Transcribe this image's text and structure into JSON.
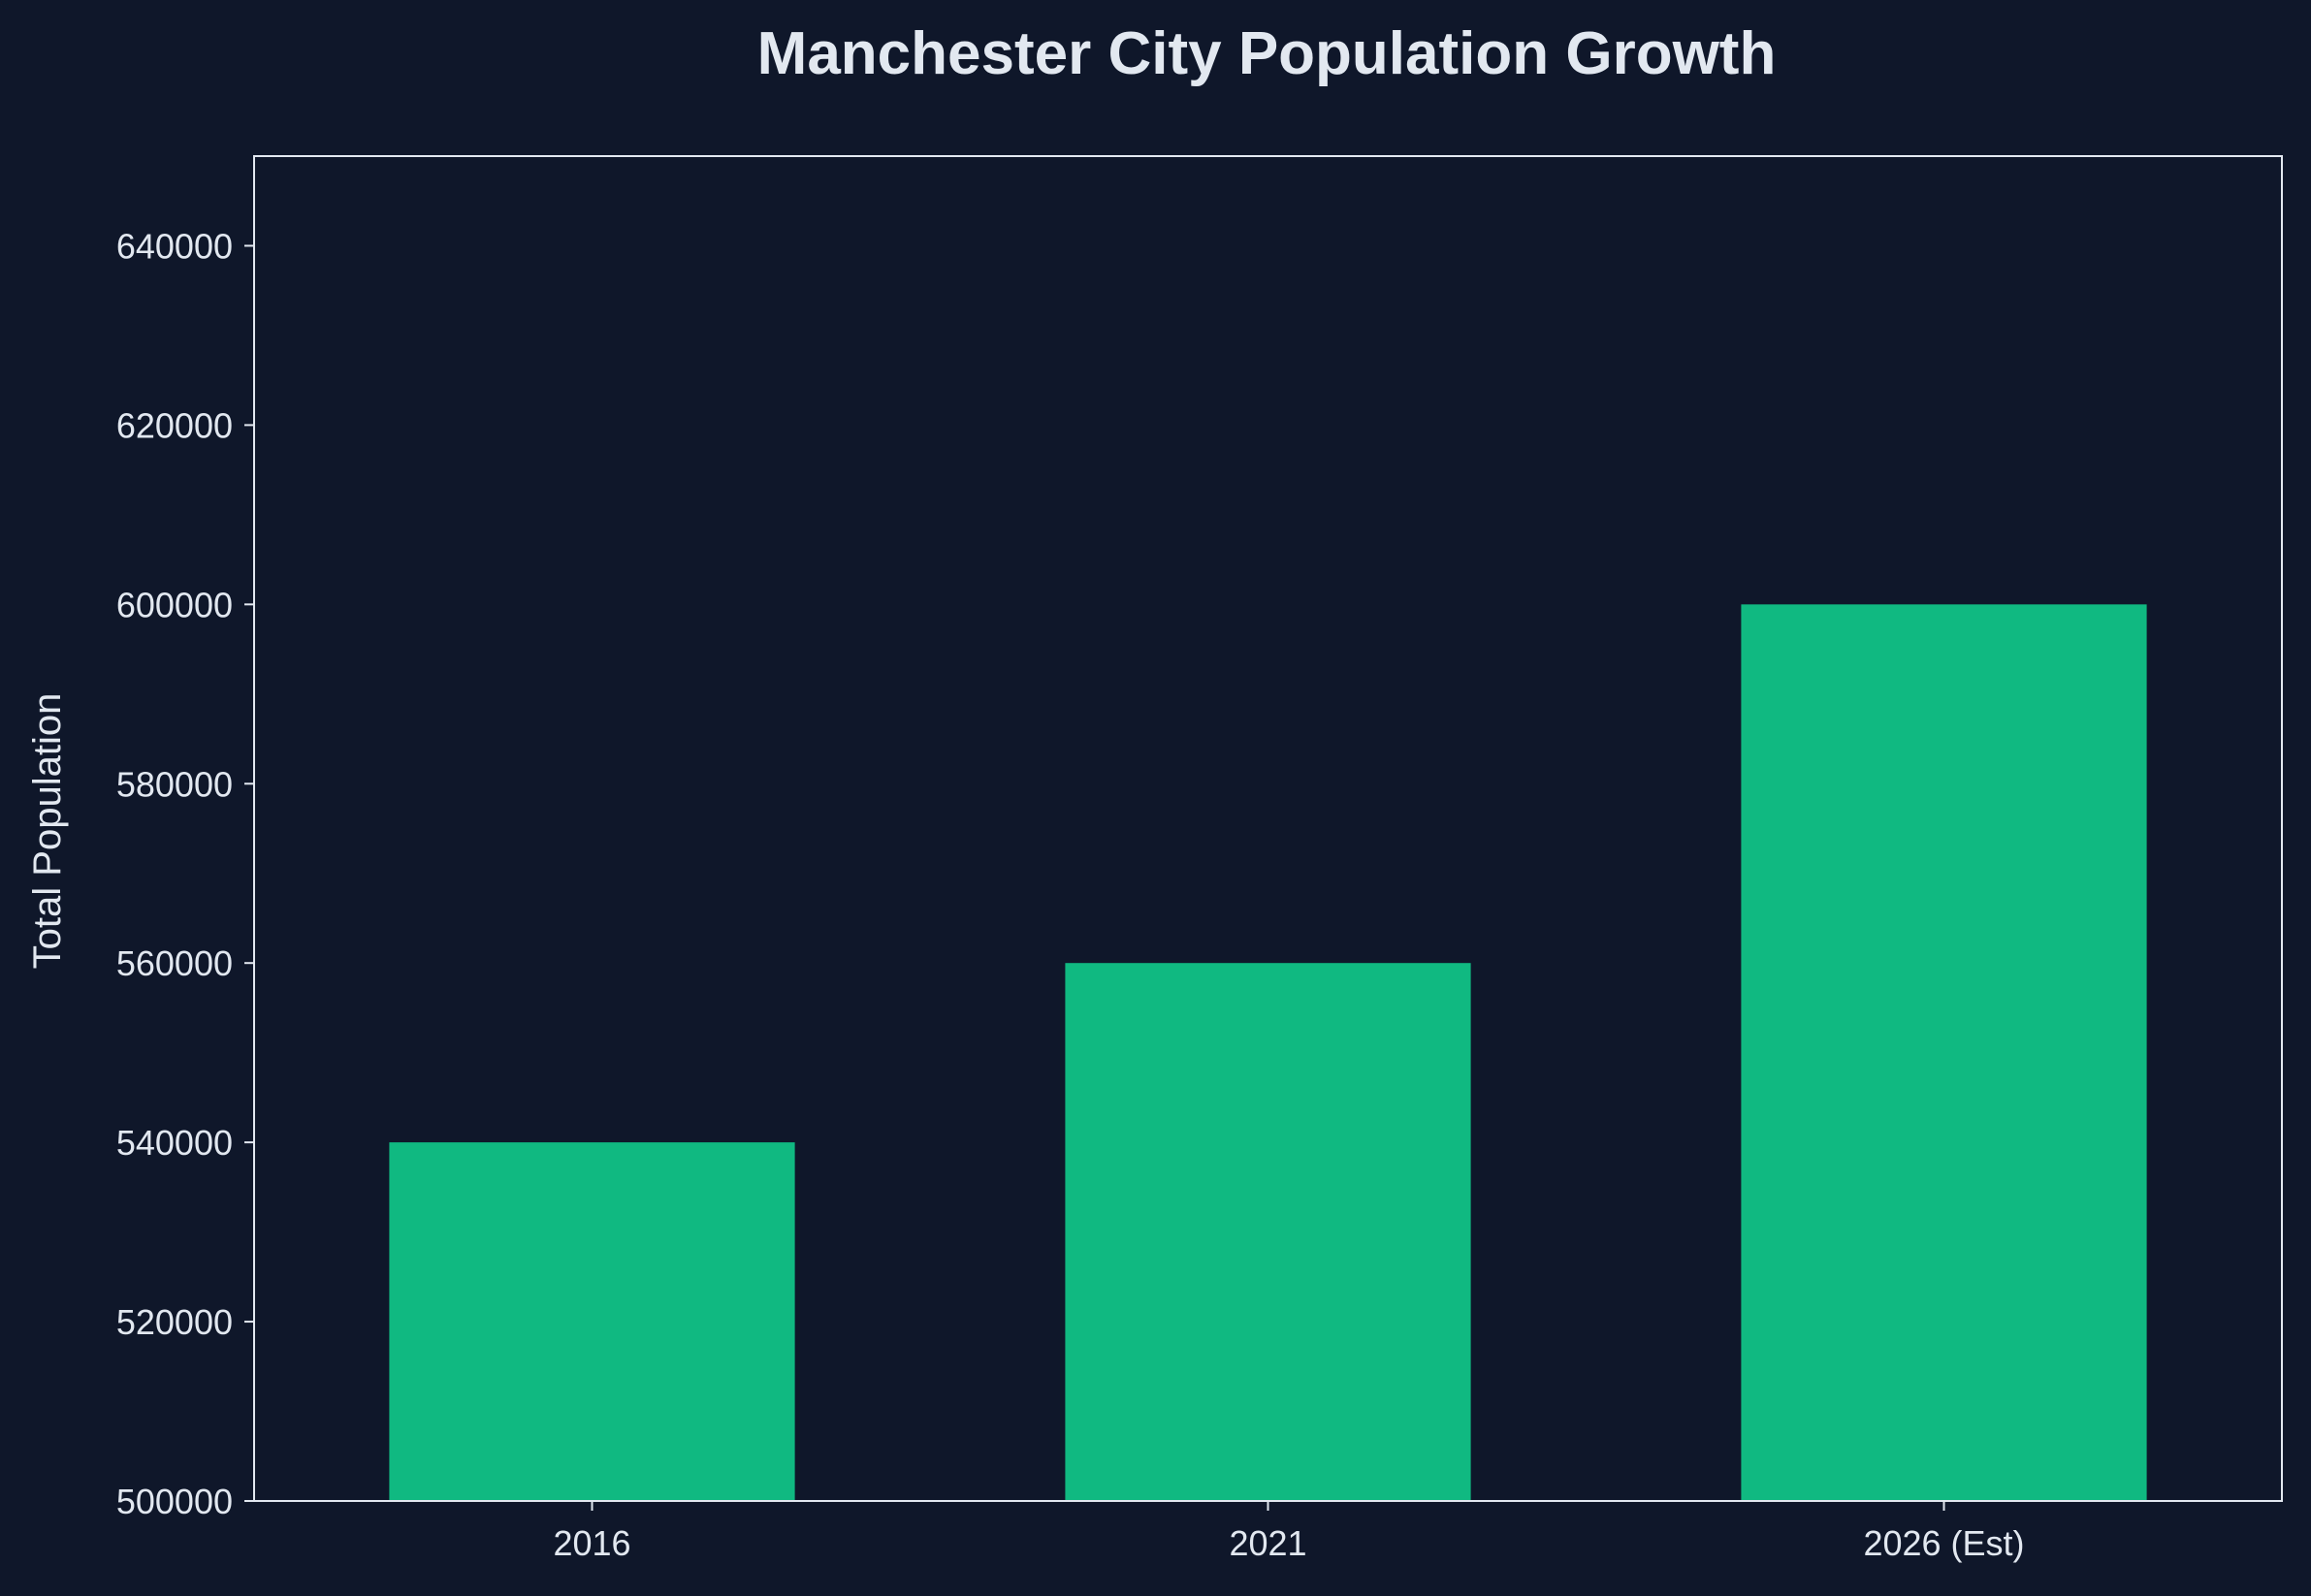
{
  "chart_data": {
    "type": "bar",
    "title": "Manchester City Population Growth",
    "xlabel": "",
    "ylabel": "Total Population",
    "categories": [
      "2016",
      "2021",
      "2026 (Est)"
    ],
    "values": [
      540000,
      560000,
      600000
    ],
    "ylim": [
      500000,
      650000
    ],
    "yticks": [
      500000,
      520000,
      540000,
      560000,
      580000,
      600000,
      620000,
      640000
    ],
    "grid": false,
    "legend": "none"
  },
  "colors": {
    "background": "#0f172a",
    "bar": "#10b981",
    "text": "#e2e8f0",
    "axis": "#e2e8f0"
  }
}
